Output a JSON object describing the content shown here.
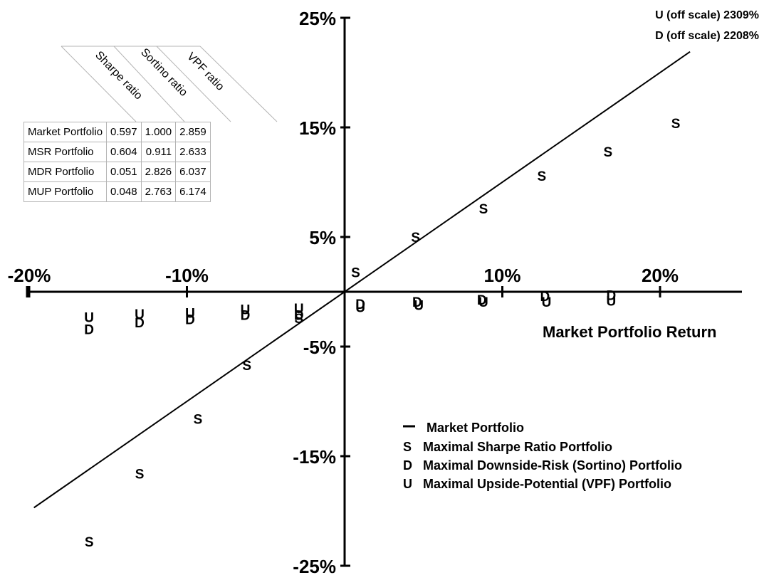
{
  "chart_data": {
    "type": "scatter",
    "xlabel": "Market Portfolio Return",
    "ylabel": "",
    "xlim": [
      -20,
      25.5
    ],
    "ylim": [
      -25,
      25
    ],
    "x_ticks": [
      -20,
      -10,
      10,
      20
    ],
    "x_tick_labels": [
      "-20%",
      "-10%",
      "10%",
      "20%"
    ],
    "y_ticks": [
      25,
      15,
      5,
      -5,
      -15,
      -25
    ],
    "y_tick_labels": [
      "25%",
      "15%",
      "5%",
      "-5%",
      "-15%",
      "-25%"
    ],
    "series": [
      {
        "name": "Market Portfolio",
        "symbol": "—",
        "style": "line",
        "x": [
          -19.7,
          21.9
        ],
        "y": [
          -19.7,
          21.9
        ]
      },
      {
        "name": "Maximal Sharpe Ratio Portfolio",
        "symbol": "S",
        "style": "letters",
        "x": [
          -16.2,
          -13.0,
          -9.3,
          -6.2,
          -2.9,
          0.7,
          4.5,
          8.8,
          12.5,
          16.7,
          21.0
        ],
        "y": [
          -22.8,
          -16.6,
          -11.6,
          -6.7,
          -2.4,
          1.8,
          5.0,
          7.6,
          10.6,
          12.8,
          15.4
        ]
      },
      {
        "name": "Maximal Downside-Risk (Sortino) Portfolio",
        "symbol": "D",
        "style": "letters",
        "x": [
          -16.2,
          -13.0,
          -9.8,
          -6.3,
          -2.9,
          1.0,
          4.6,
          8.7,
          12.7,
          16.9
        ],
        "y": [
          -3.4,
          -2.8,
          -2.5,
          -2.1,
          -2.1,
          -1.1,
          -0.9,
          -0.7,
          -0.4,
          -0.3
        ]
      },
      {
        "name": "Maximal Upside-Potential (VPF) Portfolio",
        "symbol": "U",
        "style": "letters",
        "x": [
          -16.2,
          -13.0,
          -9.8,
          -6.3,
          -2.9,
          1.0,
          4.7,
          8.8,
          12.8,
          16.9
        ],
        "y": [
          -2.3,
          -2.0,
          -1.9,
          -1.6,
          -1.5,
          -1.4,
          -1.2,
          -0.9,
          -0.9,
          -0.8
        ]
      }
    ],
    "annotations": [
      "U (off scale) 2309%",
      "D (off scale) 2208%"
    ],
    "legend": {
      "placement": "bottom-right"
    }
  },
  "table": {
    "column_headers": [
      "Sharpe ratio",
      "Sortino ratio",
      "VPF ratio"
    ],
    "rows": [
      {
        "label": "Market Portfolio",
        "values": [
          "0.597",
          "1.000",
          "2.859"
        ]
      },
      {
        "label": "MSR Portfolio",
        "values": [
          "0.604",
          "0.911",
          "2.633"
        ]
      },
      {
        "label": "MDR Portfolio",
        "values": [
          "0.051",
          "2.826",
          "6.037"
        ]
      },
      {
        "label": "MUP Portfolio",
        "values": [
          "0.048",
          "2.763",
          "6.174"
        ]
      }
    ]
  },
  "colors": {
    "axis": "#000000",
    "marker": "#000000",
    "table_border": "#b4b4b4"
  }
}
